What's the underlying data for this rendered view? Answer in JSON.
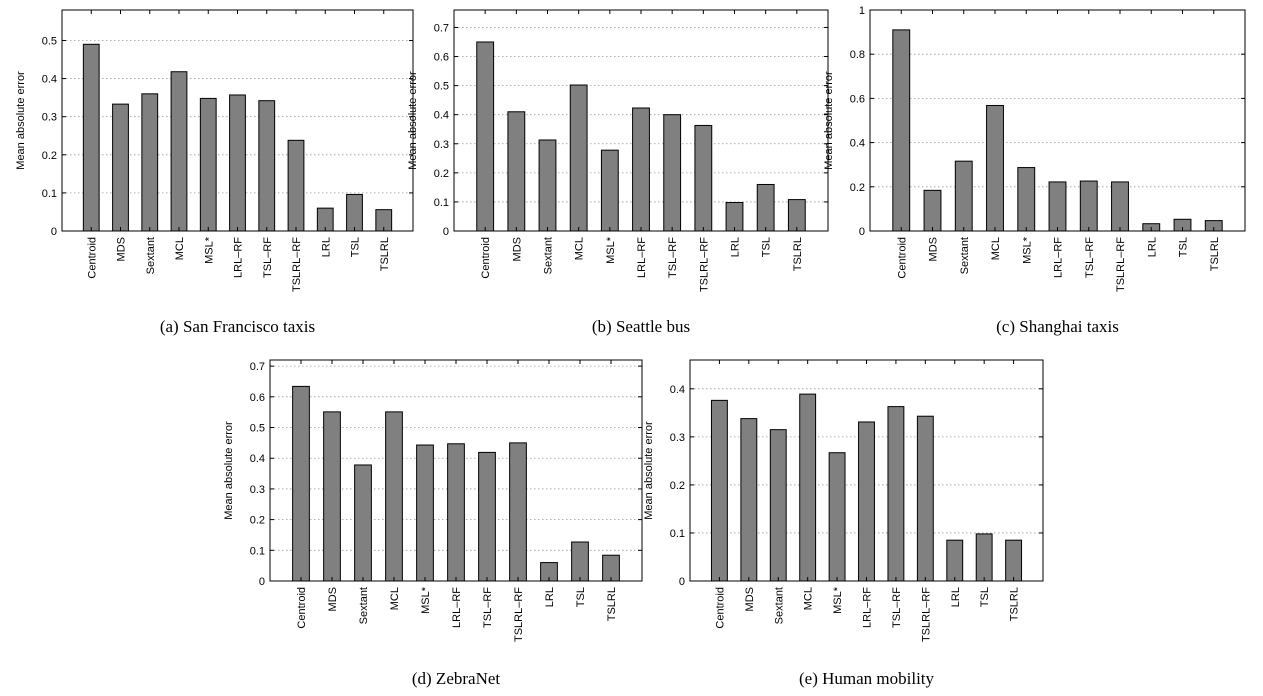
{
  "chart_data": [
    {
      "type": "bar",
      "caption": "(a) San Francisco taxis",
      "ylabel": "Mean absolute error",
      "categories": [
        "Centroid",
        "MDS",
        "Sextant",
        "MCL",
        "MSL*",
        "LRL–RF",
        "TSL–RF",
        "TSLRL–RF",
        "LRL",
        "TSL",
        "TSLRL"
      ],
      "values": [
        0.49,
        0.333,
        0.36,
        0.418,
        0.348,
        0.357,
        0.342,
        0.238,
        0.06,
        0.096,
        0.056
      ],
      "ylim": [
        0,
        0.58
      ],
      "yticks": [
        0,
        0.1,
        0.2,
        0.3,
        0.4,
        0.5
      ],
      "ytick_labels": [
        "0",
        "0.1",
        "0.2",
        "0.3",
        "0.4",
        "0.5"
      ],
      "grid": true
    },
    {
      "type": "bar",
      "caption": "(b) Seattle bus",
      "ylabel": "Mean absolute error",
      "categories": [
        "Centroid",
        "MDS",
        "Sextant",
        "MCL",
        "MSL*",
        "LRL–RF",
        "TSL–RF",
        "TSLRL–RF",
        "LRL",
        "TSL",
        "TSLRL"
      ],
      "values": [
        0.65,
        0.41,
        0.313,
        0.502,
        0.278,
        0.423,
        0.4,
        0.363,
        0.098,
        0.16,
        0.108
      ],
      "ylim": [
        0,
        0.76
      ],
      "yticks": [
        0,
        0.1,
        0.2,
        0.3,
        0.4,
        0.5,
        0.6,
        0.7
      ],
      "ytick_labels": [
        "0",
        "0.1",
        "0.2",
        "0.3",
        "0.4",
        "0.5",
        "0.6",
        "0.7"
      ],
      "grid": true
    },
    {
      "type": "bar",
      "caption": "(c) Shanghai taxis",
      "ylabel": "Mean absolute error",
      "categories": [
        "Centroid",
        "MDS",
        "Sextant",
        "MCL",
        "MSL*",
        "LRL–RF",
        "TSL–RF",
        "TSLRL–RF",
        "LRL",
        "TSL",
        "TSLRL"
      ],
      "values": [
        0.91,
        0.184,
        0.316,
        0.568,
        0.287,
        0.222,
        0.226,
        0.222,
        0.033,
        0.053,
        0.047
      ],
      "ylim": [
        0,
        1.0
      ],
      "yticks": [
        0,
        0.2,
        0.4,
        0.6,
        0.8,
        1
      ],
      "ytick_labels": [
        "0",
        "0.2",
        "0.4",
        "0.6",
        "0.8",
        "1"
      ],
      "grid": true
    },
    {
      "type": "bar",
      "caption": "(d) ZebraNet",
      "ylabel": "Mean absolute error",
      "categories": [
        "Centroid",
        "MDS",
        "Sextant",
        "MCL",
        "MSL*",
        "LRL–RF",
        "TSL–RF",
        "TSLRL–RF",
        "LRL",
        "TSL",
        "TSLRL"
      ],
      "values": [
        0.634,
        0.551,
        0.378,
        0.551,
        0.443,
        0.447,
        0.419,
        0.45,
        0.06,
        0.127,
        0.084
      ],
      "ylim": [
        0,
        0.72
      ],
      "yticks": [
        0,
        0.1,
        0.2,
        0.3,
        0.4,
        0.5,
        0.6,
        0.7
      ],
      "ytick_labels": [
        "0",
        "0.1",
        "0.2",
        "0.3",
        "0.4",
        "0.5",
        "0.6",
        "0.7"
      ],
      "grid": true
    },
    {
      "type": "bar",
      "caption": "(e) Human mobility",
      "ylabel": "Mean absolute error",
      "categories": [
        "Centroid",
        "MDS",
        "Sextant",
        "MCL",
        "MSL*",
        "LRL–RF",
        "TSL–RF",
        "TSLRL–RF",
        "LRL",
        "TSL",
        "TSLRL"
      ],
      "values": [
        0.376,
        0.338,
        0.315,
        0.389,
        0.267,
        0.331,
        0.363,
        0.343,
        0.085,
        0.098,
        0.085
      ],
      "ylim": [
        0,
        0.46
      ],
      "yticks": [
        0,
        0.1,
        0.2,
        0.3,
        0.4
      ],
      "ytick_labels": [
        "0",
        "0.1",
        "0.2",
        "0.3",
        "0.4"
      ],
      "grid": true
    }
  ]
}
